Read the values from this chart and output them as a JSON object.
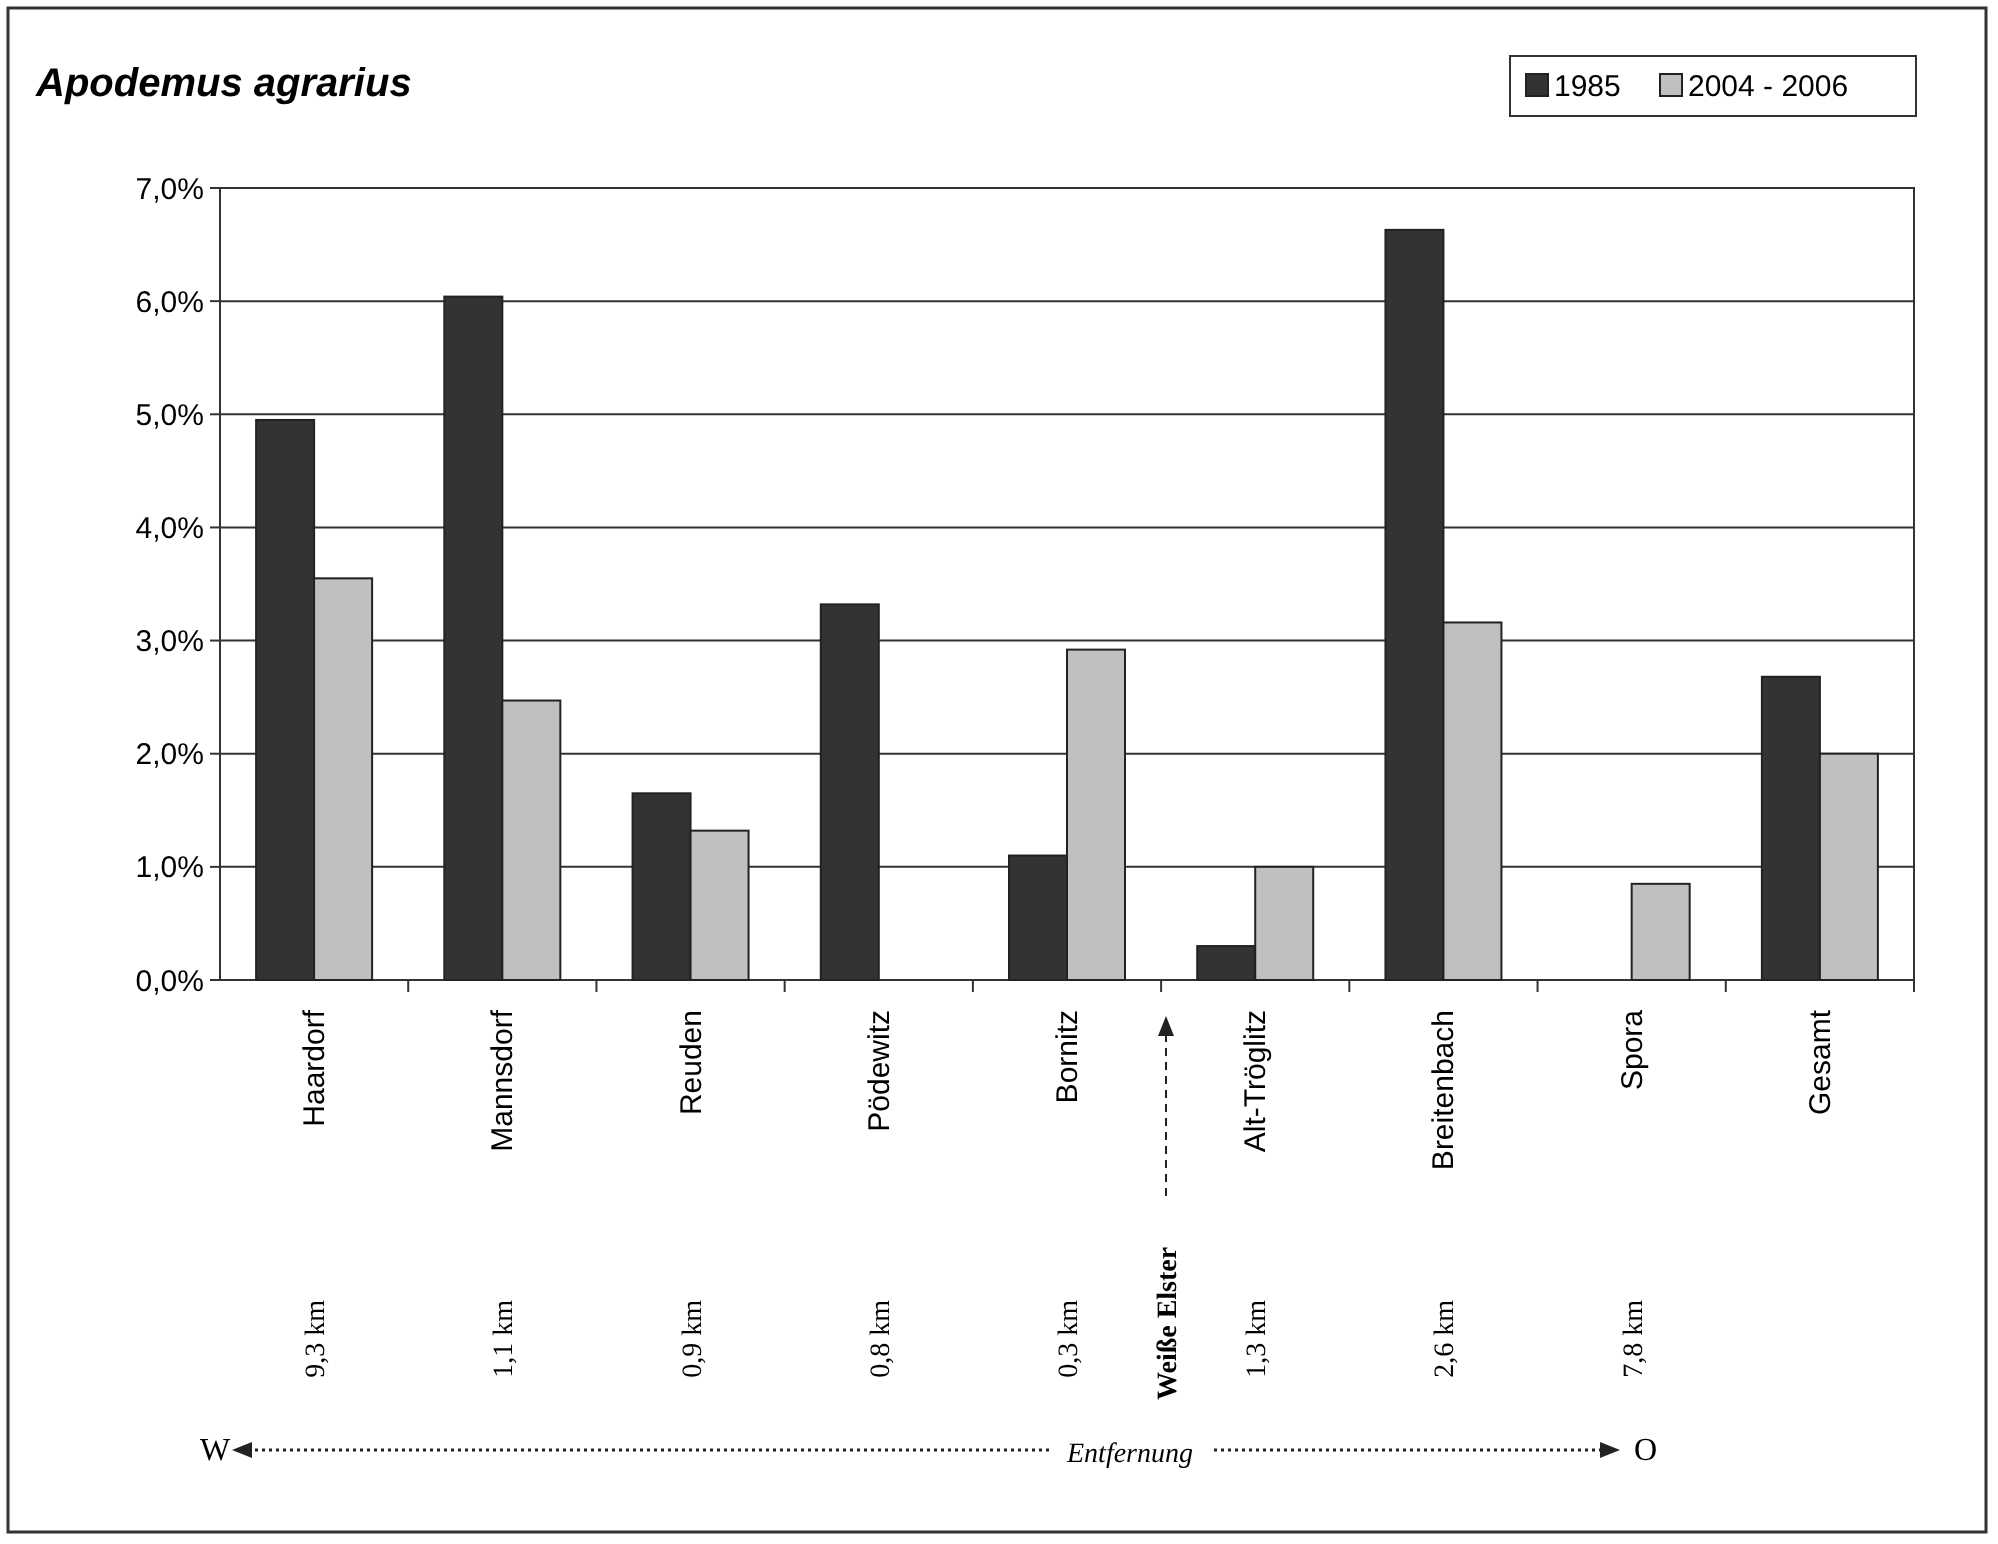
{
  "chart_data": {
    "type": "bar",
    "title": "Apodemus agrarius",
    "categories": [
      "Haardorf",
      "Mannsdorf",
      "Reuden",
      "Pödewitz",
      "Bornitz",
      "Alt-Tröglitz",
      "Breitenbach",
      "Spora",
      "Gesamt"
    ],
    "series": [
      {
        "name": "1985",
        "color": "#333333",
        "values": [
          4.95,
          6.04,
          1.65,
          3.32,
          1.1,
          0.3,
          6.63,
          null,
          2.68
        ]
      },
      {
        "name": "2004 - 2006",
        "color": "#c0c0c0",
        "values": [
          3.55,
          2.47,
          1.32,
          null,
          2.92,
          1.0,
          3.16,
          0.85,
          2.0
        ]
      }
    ],
    "ylim": [
      0,
      7
    ],
    "yticks": [
      {
        "value": 0,
        "label": "0,0%"
      },
      {
        "value": 1,
        "label": "1,0%"
      },
      {
        "value": 2,
        "label": "2,0%"
      },
      {
        "value": 3,
        "label": "3,0%"
      },
      {
        "value": 4,
        "label": "4,0%"
      },
      {
        "value": 5,
        "label": "5,0%"
      },
      {
        "value": 6,
        "label": "6,0%"
      },
      {
        "value": 7,
        "label": "7,0%"
      }
    ],
    "grid": "y",
    "legend": "top right",
    "annotations": [
      "9,3 km",
      "1,1 km",
      "0,9 km",
      "0,8 km",
      "0,3 km",
      "1,3 km",
      "2,6 km",
      "7,8 km",
      "Weiße Elster",
      "W",
      "Entfernung",
      "O"
    ]
  }
}
